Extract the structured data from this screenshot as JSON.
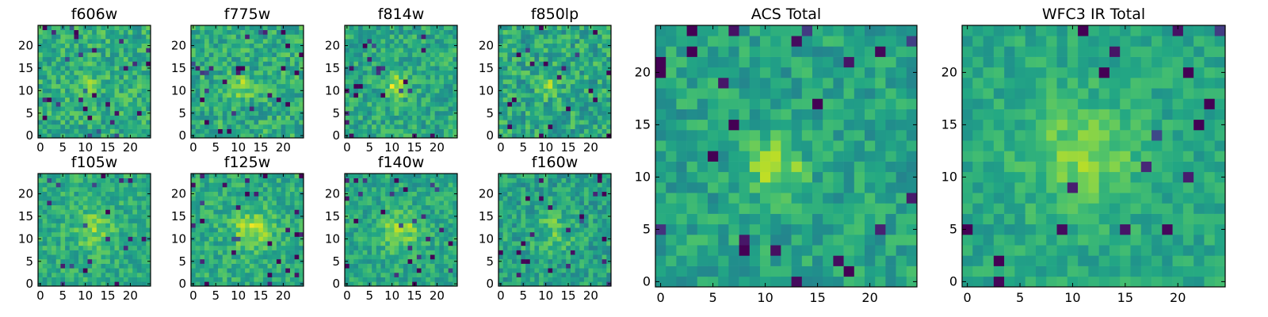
{
  "figure": {
    "layout": "2 rows x 4 small panels, plus 2 large panels on the right"
  },
  "chart_data": [
    {
      "type": "heatmap",
      "title": "f606w",
      "size": 25,
      "xlim": [
        0,
        24
      ],
      "ylim": [
        0,
        24
      ],
      "xticks": [
        0,
        5,
        10,
        15,
        20
      ],
      "yticks": [
        0,
        5,
        10,
        15,
        20
      ],
      "colormap": "viridis",
      "seed": 11,
      "peak": [
        11,
        11
      ],
      "peak_amp": 0.22,
      "peak_sigma": 1.5,
      "noise": 0.16,
      "base": 0.62
    },
    {
      "type": "heatmap",
      "title": "f775w",
      "size": 25,
      "xlim": [
        0,
        24
      ],
      "ylim": [
        0,
        24
      ],
      "xticks": [
        0,
        5,
        10,
        15,
        20
      ],
      "yticks": [
        0,
        5,
        10,
        15,
        20
      ],
      "colormap": "viridis",
      "seed": 23,
      "peak": [
        11,
        11
      ],
      "peak_amp": 0.26,
      "peak_sigma": 1.6,
      "noise": 0.16,
      "base": 0.62
    },
    {
      "type": "heatmap",
      "title": "f814w",
      "size": 25,
      "xlim": [
        0,
        24
      ],
      "ylim": [
        0,
        24
      ],
      "xticks": [
        0,
        5,
        10,
        15,
        20
      ],
      "yticks": [
        0,
        5,
        10,
        15,
        20
      ],
      "colormap": "viridis",
      "seed": 37,
      "peak": [
        11,
        11
      ],
      "peak_amp": 0.32,
      "peak_sigma": 1.7,
      "noise": 0.15,
      "base": 0.6
    },
    {
      "type": "heatmap",
      "title": "f850lp",
      "size": 25,
      "xlim": [
        0,
        24
      ],
      "ylim": [
        0,
        24
      ],
      "xticks": [
        0,
        5,
        10,
        15,
        20
      ],
      "yticks": [
        0,
        5,
        10,
        15,
        20
      ],
      "colormap": "viridis",
      "seed": 41,
      "peak": [
        11,
        11
      ],
      "peak_amp": 0.2,
      "peak_sigma": 1.6,
      "noise": 0.17,
      "base": 0.6
    },
    {
      "type": "heatmap",
      "title": "f105w",
      "size": 25,
      "xlim": [
        0,
        24
      ],
      "ylim": [
        0,
        24
      ],
      "xticks": [
        0,
        5,
        10,
        15,
        20
      ],
      "yticks": [
        0,
        5,
        10,
        15,
        20
      ],
      "colormap": "viridis",
      "seed": 53,
      "peak": [
        12,
        12
      ],
      "peak_amp": 0.18,
      "peak_sigma": 3.0,
      "noise": 0.13,
      "base": 0.62
    },
    {
      "type": "heatmap",
      "title": "f125w",
      "size": 25,
      "xlim": [
        0,
        24
      ],
      "ylim": [
        0,
        24
      ],
      "xticks": [
        0,
        5,
        10,
        15,
        20
      ],
      "yticks": [
        0,
        5,
        10,
        15,
        20
      ],
      "colormap": "viridis",
      "seed": 67,
      "peak": [
        13,
        12
      ],
      "peak_amp": 0.25,
      "peak_sigma": 3.0,
      "noise": 0.13,
      "base": 0.62
    },
    {
      "type": "heatmap",
      "title": "f140w",
      "size": 25,
      "xlim": [
        0,
        24
      ],
      "ylim": [
        0,
        24
      ],
      "xticks": [
        0,
        5,
        10,
        15,
        20
      ],
      "yticks": [
        0,
        5,
        10,
        15,
        20
      ],
      "colormap": "viridis",
      "seed": 71,
      "peak": [
        12,
        12
      ],
      "peak_amp": 0.24,
      "peak_sigma": 3.0,
      "noise": 0.13,
      "base": 0.6
    },
    {
      "type": "heatmap",
      "title": "f160w",
      "size": 25,
      "xlim": [
        0,
        24
      ],
      "ylim": [
        0,
        24
      ],
      "xticks": [
        0,
        5,
        10,
        15,
        20
      ],
      "yticks": [
        0,
        5,
        10,
        15,
        20
      ],
      "colormap": "viridis",
      "seed": 89,
      "peak": [
        12,
        12
      ],
      "peak_amp": 0.15,
      "peak_sigma": 2.8,
      "noise": 0.15,
      "base": 0.58
    },
    {
      "type": "heatmap",
      "title": "ACS Total",
      "size": 25,
      "xlim": [
        0,
        24
      ],
      "ylim": [
        0,
        24
      ],
      "xticks": [
        0,
        5,
        10,
        15,
        20
      ],
      "yticks": [
        0,
        5,
        10,
        15,
        20
      ],
      "colormap": "viridis",
      "seed": 97,
      "peak": [
        11,
        11
      ],
      "peak_amp": 0.3,
      "peak_sigma": 1.8,
      "noise": 0.13,
      "base": 0.58
    },
    {
      "type": "heatmap",
      "title": "WFC3 IR Total",
      "size": 25,
      "xlim": [
        0,
        24
      ],
      "ylim": [
        0,
        24
      ],
      "xticks": [
        0,
        5,
        10,
        15,
        20
      ],
      "yticks": [
        0,
        5,
        10,
        15,
        20
      ],
      "colormap": "viridis",
      "seed": 103,
      "peak": [
        11,
        12
      ],
      "peak_amp": 0.22,
      "peak_sigma": 3.5,
      "noise": 0.1,
      "base": 0.6
    }
  ]
}
